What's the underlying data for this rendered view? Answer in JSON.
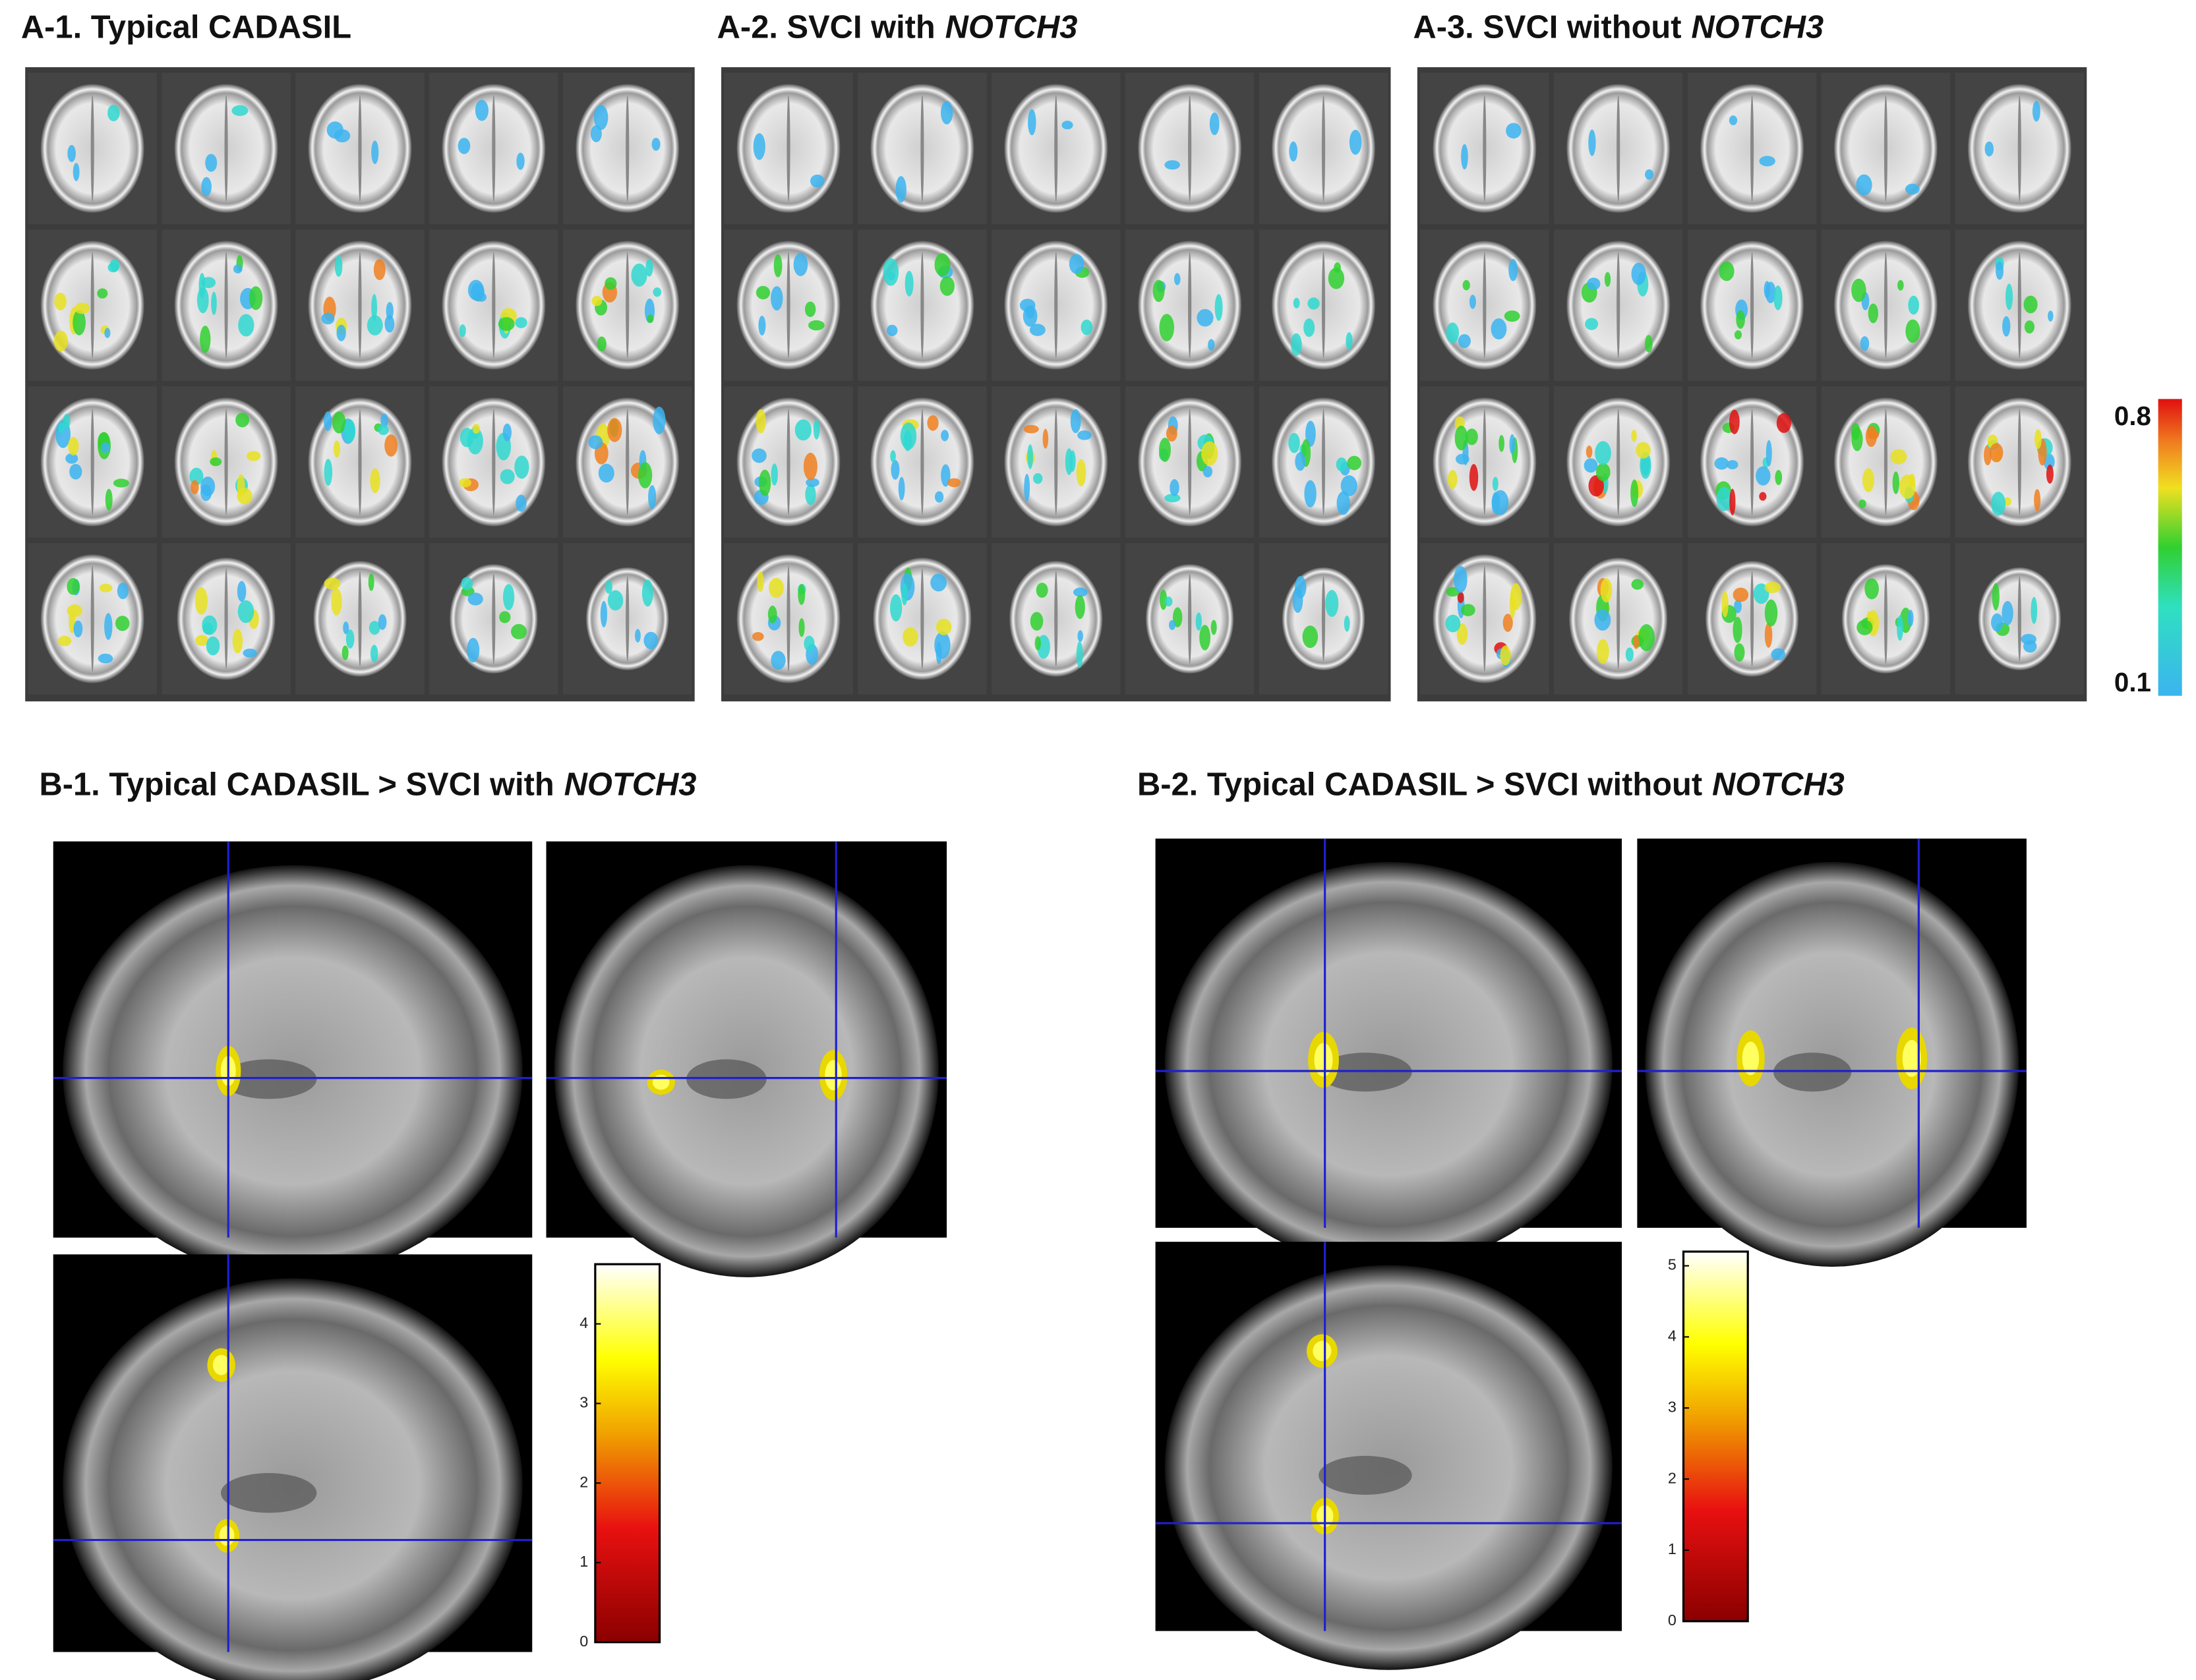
{
  "panels_a": [
    {
      "label": "A-1. Typical CADASIL"
    },
    {
      "label": "A-2. SVCI with",
      "gene": "NOTCH3"
    },
    {
      "label": "A-3. SVCI without",
      "gene": "NOTCH3"
    }
  ],
  "colorbar_a": {
    "lim": [
      0.07,
      0.85
    ],
    "ticks": [
      0.8,
      0.1
    ]
  },
  "panels_b": [
    {
      "label": "B-1. Typical CADASIL > SVCI with",
      "gene": "NOTCH3",
      "colorbar": {
        "lim": [
          0,
          4.75
        ],
        "ticks": [
          0,
          1,
          2,
          3,
          4
        ]
      }
    },
    {
      "label": "B-2. Typical CADASIL > SVCI without",
      "gene": "NOTCH3",
      "colorbar": {
        "lim": [
          0,
          5.2
        ],
        "ticks": [
          0,
          1,
          2,
          3,
          4,
          5
        ]
      }
    }
  ]
}
